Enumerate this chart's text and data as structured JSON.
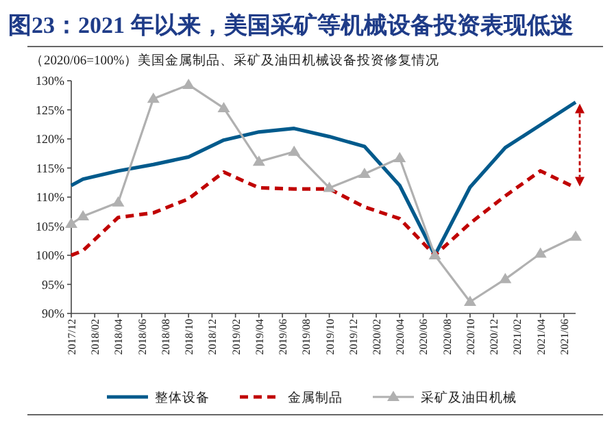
{
  "chart_data": {
    "type": "line",
    "title": "图23：2021 年以来，美国采矿等机械设备投资表现低迷",
    "subtitle": "（2020/06=100%）美国金属制品、采矿及油田机械设备投资修复情况",
    "x": [
      "2017-12",
      "2018-01",
      "2018-04",
      "2018-07",
      "2018-10",
      "2019-01",
      "2019-04",
      "2019-07",
      "2019-10",
      "2020-01",
      "2020-04",
      "2020-07",
      "2020-10",
      "2021-01",
      "2021-04",
      "2021-07"
    ],
    "series": [
      {
        "name": "整体设备",
        "color": "#005a8c",
        "line_style": "solid",
        "marker": "none",
        "values": [
          112.0,
          113.1,
          114.5,
          115.6,
          116.9,
          119.8,
          121.2,
          121.8,
          120.4,
          118.7,
          112.0,
          100.0,
          111.7,
          118.5,
          122.4,
          126.3
        ]
      },
      {
        "name": "金属制品",
        "color": "#c00000",
        "line_style": "dashed",
        "marker": "none",
        "values": [
          100.0,
          100.8,
          106.5,
          107.3,
          109.7,
          114.3,
          111.6,
          111.4,
          111.4,
          108.3,
          106.3,
          100.0,
          105.5,
          110.2,
          114.5,
          111.6
        ]
      },
      {
        "name": "采矿及油田机械",
        "color": "#b0b0b0",
        "line_style": "solid",
        "marker": "triangle",
        "values": [
          105.4,
          106.7,
          109.1,
          126.9,
          129.3,
          125.3,
          116.1,
          117.8,
          111.6,
          114.0,
          116.7,
          100.0,
          92.0,
          95.9,
          100.3,
          103.2
        ]
      }
    ],
    "xlim": [
      "2017-12",
      "2021-07"
    ],
    "xticks": [
      {
        "value": "2017-12",
        "label": "2017/12"
      },
      {
        "value": "2018-02",
        "label": "2018/02"
      },
      {
        "value": "2018-04",
        "label": "2018/04"
      },
      {
        "value": "2018-06",
        "label": "2018/06"
      },
      {
        "value": "2018-08",
        "label": "2018/08"
      },
      {
        "value": "2018-10",
        "label": "2018/10"
      },
      {
        "value": "2018-12",
        "label": "2018/12"
      },
      {
        "value": "2019-02",
        "label": "2019/02"
      },
      {
        "value": "2019-04",
        "label": "2019/04"
      },
      {
        "value": "2019-06",
        "label": "2019/06"
      },
      {
        "value": "2019-08",
        "label": "2019/08"
      },
      {
        "value": "2019-10",
        "label": "2019/10"
      },
      {
        "value": "2019-12",
        "label": "2019/12"
      },
      {
        "value": "2020-02",
        "label": "2020/02"
      },
      {
        "value": "2020-04",
        "label": "2020/04"
      },
      {
        "value": "2020-06",
        "label": "2020/06"
      },
      {
        "value": "2020-08",
        "label": "2020/08"
      },
      {
        "value": "2020-10",
        "label": "2020/10"
      },
      {
        "value": "2020-12",
        "label": "2020/12"
      },
      {
        "value": "2021-02",
        "label": "2021/02"
      },
      {
        "value": "2021-04",
        "label": "2021/04"
      },
      {
        "value": "2021-06",
        "label": "2021/06"
      }
    ],
    "ylim": [
      90,
      130
    ],
    "yticks": [
      {
        "value": 90,
        "label": "90%"
      },
      {
        "value": 95,
        "label": "95%"
      },
      {
        "value": 100,
        "label": "100%"
      },
      {
        "value": 105,
        "label": "105%"
      },
      {
        "value": 110,
        "label": "110%"
      },
      {
        "value": 115,
        "label": "115%"
      },
      {
        "value": 120,
        "label": "120%"
      },
      {
        "value": 125,
        "label": "125%"
      },
      {
        "value": 130,
        "label": "130%"
      }
    ],
    "grid": false,
    "legend": "bottom"
  }
}
